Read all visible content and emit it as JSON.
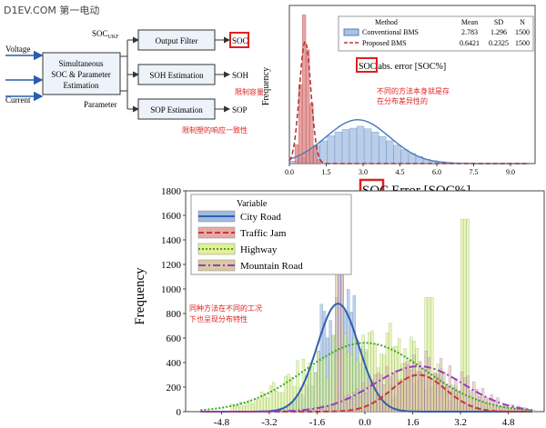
{
  "watermark": "D1EV.COM 第一电动",
  "block_diagram": {
    "inputs": [
      "Voltage",
      "Current"
    ],
    "estimator": [
      "Simultaneous",
      "SOC & Parameter",
      "Estimation"
    ],
    "soc_ukf": "SOC",
    "soc_ukf_sub": "UKF",
    "parameter_label": "Parameter",
    "blocks": [
      "Output Filter",
      "SOH Estimation",
      "SOP Estimation"
    ],
    "outputs": [
      "SOC",
      "SOH",
      "SOP"
    ],
    "note_limit": "限制容量",
    "note_response": "限制塑的响应一致性",
    "colors": {
      "block_fill": "#eef3fb",
      "border": "#333",
      "highlight": "#e02020"
    }
  },
  "chart_data": [
    {
      "type": "histogram",
      "xlabel_highlight": "SOC",
      "xlabel": "abs. error [SOC%]",
      "ylabel": "Frequency",
      "xlim": [
        0,
        10
      ],
      "ylim": [
        0,
        500
      ],
      "xticks": [
        "0.0",
        "1.5",
        "3.0",
        "4.5",
        "6.0",
        "7.5",
        "9.0"
      ],
      "legend": {
        "header": [
          "Method",
          "Mean",
          "SD",
          "N"
        ],
        "rows": [
          {
            "name": "Conventional BMS",
            "mean": "2.783",
            "sd": "1.296",
            "n": "1500",
            "color": "#4f7fbf"
          },
          {
            "name": "Proposed BMS",
            "mean": "0.6421",
            "sd": "0.2325",
            "n": "1500",
            "color": "#c0393b"
          }
        ]
      },
      "series": [
        {
          "name": "Conventional BMS",
          "mean": 2.783,
          "sd": 1.296,
          "n": 1500,
          "bins": [
            [
              0.2,
              8
            ],
            [
              0.5,
              20
            ],
            [
              0.8,
              40
            ],
            [
              1.1,
              58
            ],
            [
              1.4,
              72
            ],
            [
              1.7,
              88
            ],
            [
              2.0,
              100
            ],
            [
              2.3,
              108
            ],
            [
              2.6,
              112
            ],
            [
              2.9,
              118
            ],
            [
              3.2,
              110
            ],
            [
              3.5,
              100
            ],
            [
              3.8,
              86
            ],
            [
              4.1,
              72
            ],
            [
              4.4,
              58
            ],
            [
              4.7,
              44
            ],
            [
              5.0,
              32
            ],
            [
              5.3,
              22
            ],
            [
              5.6,
              14
            ],
            [
              5.9,
              9
            ],
            [
              6.2,
              6
            ],
            [
              6.5,
              3
            ]
          ]
        },
        {
          "name": "Proposed BMS",
          "mean": 0.6421,
          "sd": 0.2325,
          "n": 1500,
          "bins": [
            [
              0.3,
              60
            ],
            [
              0.45,
              250
            ],
            [
              0.6,
              470
            ],
            [
              0.75,
              360
            ],
            [
              0.9,
              190
            ],
            [
              1.05,
              55
            ],
            [
              1.2,
              12
            ]
          ]
        }
      ],
      "annotation": [
        "不同的方法本身就是存",
        "在分布差异性的"
      ]
    },
    {
      "type": "histogram",
      "xlabel_highlight": "SOC",
      "xlabel": "Error [SOC%]",
      "ylabel": "Frequency",
      "xlim": [
        -6,
        6
      ],
      "ylim": [
        0,
        1800
      ],
      "yticks": [
        0,
        200,
        400,
        600,
        800,
        1000,
        1200,
        1400,
        1600,
        1800
      ],
      "xticks": [
        "-4.8",
        "-3.2",
        "-1.6",
        "0.0",
        "1.6",
        "3.2",
        "4.8"
      ],
      "legend_title": "Variable",
      "series": [
        {
          "name": "City Road",
          "color": "#2f5fb0",
          "fill": "#9fbbe0",
          "dash": "",
          "mean": -0.9,
          "peak": 880,
          "sd": 0.7
        },
        {
          "name": "Traffic Jam",
          "color": "#c0393b",
          "fill": "#e8a9a4",
          "dash": "6,3",
          "mean": 1.8,
          "peak": 300,
          "sd": 0.9
        },
        {
          "name": "Highway",
          "color": "#3aa822",
          "fill": "#e6ee9a",
          "dash": "2,2",
          "mean": 0.0,
          "peak": 560,
          "sd": 2.0
        },
        {
          "name": "Mountain Road",
          "color": "#9a3ac0",
          "fill": "#d9c9a3",
          "dash": "8,3,2,3",
          "mean": 1.8,
          "peak": 370,
          "sd": 1.5
        }
      ],
      "annotation": [
        "同种方法在不同的工况",
        "下也呈现分布特性"
      ]
    }
  ]
}
